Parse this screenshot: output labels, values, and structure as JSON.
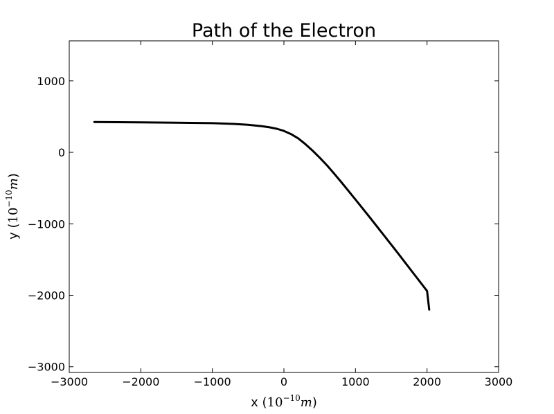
{
  "chart_data": {
    "type": "line",
    "title": "Path of the Electron",
    "xlabel": {
      "prefix": "x (",
      "base": "10",
      "exponent": "−10",
      "unit": "m",
      "suffix": ")"
    },
    "ylabel": {
      "prefix": "y (",
      "base": "10",
      "exponent": "−10",
      "unit": "m",
      "suffix": ")"
    },
    "xlim": [
      -3000,
      3000
    ],
    "ylim": [
      -3080,
      1560
    ],
    "xticks": [
      -3000,
      -2000,
      -1000,
      0,
      1000,
      2000,
      3000
    ],
    "xtick_labels": [
      "−3000",
      "−2000",
      "−1000",
      "0",
      "1000",
      "2000",
      "3000"
    ],
    "yticks": [
      -3000,
      -2000,
      -1000,
      0,
      1000
    ],
    "ytick_labels": [
      "−3000",
      "−2000",
      "−1000",
      "0",
      "1000"
    ],
    "grid": false,
    "series": [
      {
        "color": "#000000",
        "x": [
          -2650,
          -2000,
          -1500,
          -1000,
          -700,
          -500,
          -300,
          -200,
          -100,
          0,
          100,
          200,
          300,
          400,
          500,
          600,
          700,
          800,
          1000,
          1200,
          1400,
          1600,
          1800,
          2000,
          2030
        ],
        "y": [
          425,
          420,
          415,
          408,
          398,
          385,
          365,
          350,
          330,
          300,
          255,
          195,
          115,
          25,
          -75,
          -180,
          -295,
          -415,
          -660,
          -910,
          -1165,
          -1420,
          -1680,
          -1940,
          -2200
        ]
      }
    ]
  }
}
